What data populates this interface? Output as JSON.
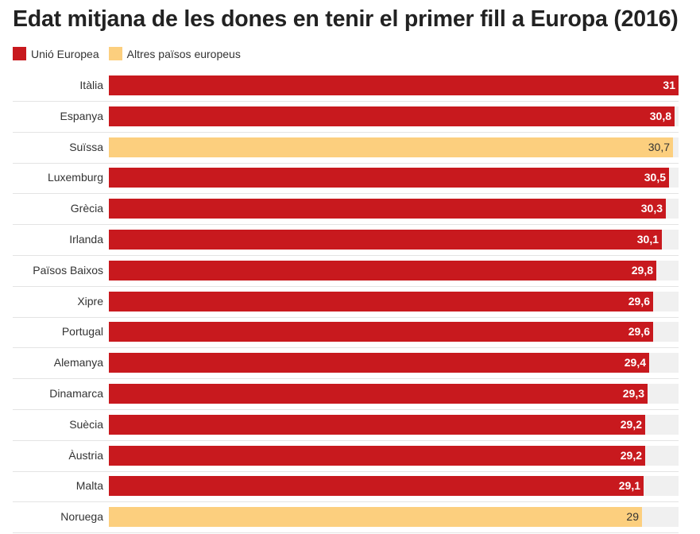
{
  "title": "Edat mitjana de les dones en tenir el primer fill a Europa (2016)",
  "legend": [
    {
      "label": "Unió Europea",
      "color": "#c8191e"
    },
    {
      "label": "Altres països europeus",
      "color": "#fccf7e"
    }
  ],
  "chart_data": {
    "type": "bar",
    "orientation": "horizontal",
    "title": "Edat mitjana de les dones en tenir el primer fill a Europa (2016)",
    "xlabel": "",
    "ylabel": "",
    "xlim": [
      0,
      31
    ],
    "categories": [
      "Itàlia",
      "Espanya",
      "Suïssa",
      "Luxemburg",
      "Grècia",
      "Irlanda",
      "Països Baixos",
      "Xipre",
      "Portugal",
      "Alemanya",
      "Dinamarca",
      "Suècia",
      "Àustria",
      "Malta",
      "Noruega"
    ],
    "values": [
      31,
      30.8,
      30.7,
      30.5,
      30.3,
      30.1,
      29.8,
      29.6,
      29.6,
      29.4,
      29.3,
      29.2,
      29.2,
      29.1,
      29
    ],
    "value_labels": [
      "31",
      "30,8",
      "30,7",
      "30,5",
      "30,3",
      "30,1",
      "29,8",
      "29,6",
      "29,6",
      "29,4",
      "29,3",
      "29,2",
      "29,2",
      "29,1",
      "29"
    ],
    "groups": [
      "Unió Europea",
      "Unió Europea",
      "Altres països europeus",
      "Unió Europea",
      "Unió Europea",
      "Unió Europea",
      "Unió Europea",
      "Unió Europea",
      "Unió Europea",
      "Unió Europea",
      "Unió Europea",
      "Unió Europea",
      "Unió Europea",
      "Unió Europea",
      "Altres països europeus"
    ],
    "grid": false,
    "legend_position": "top-left"
  }
}
